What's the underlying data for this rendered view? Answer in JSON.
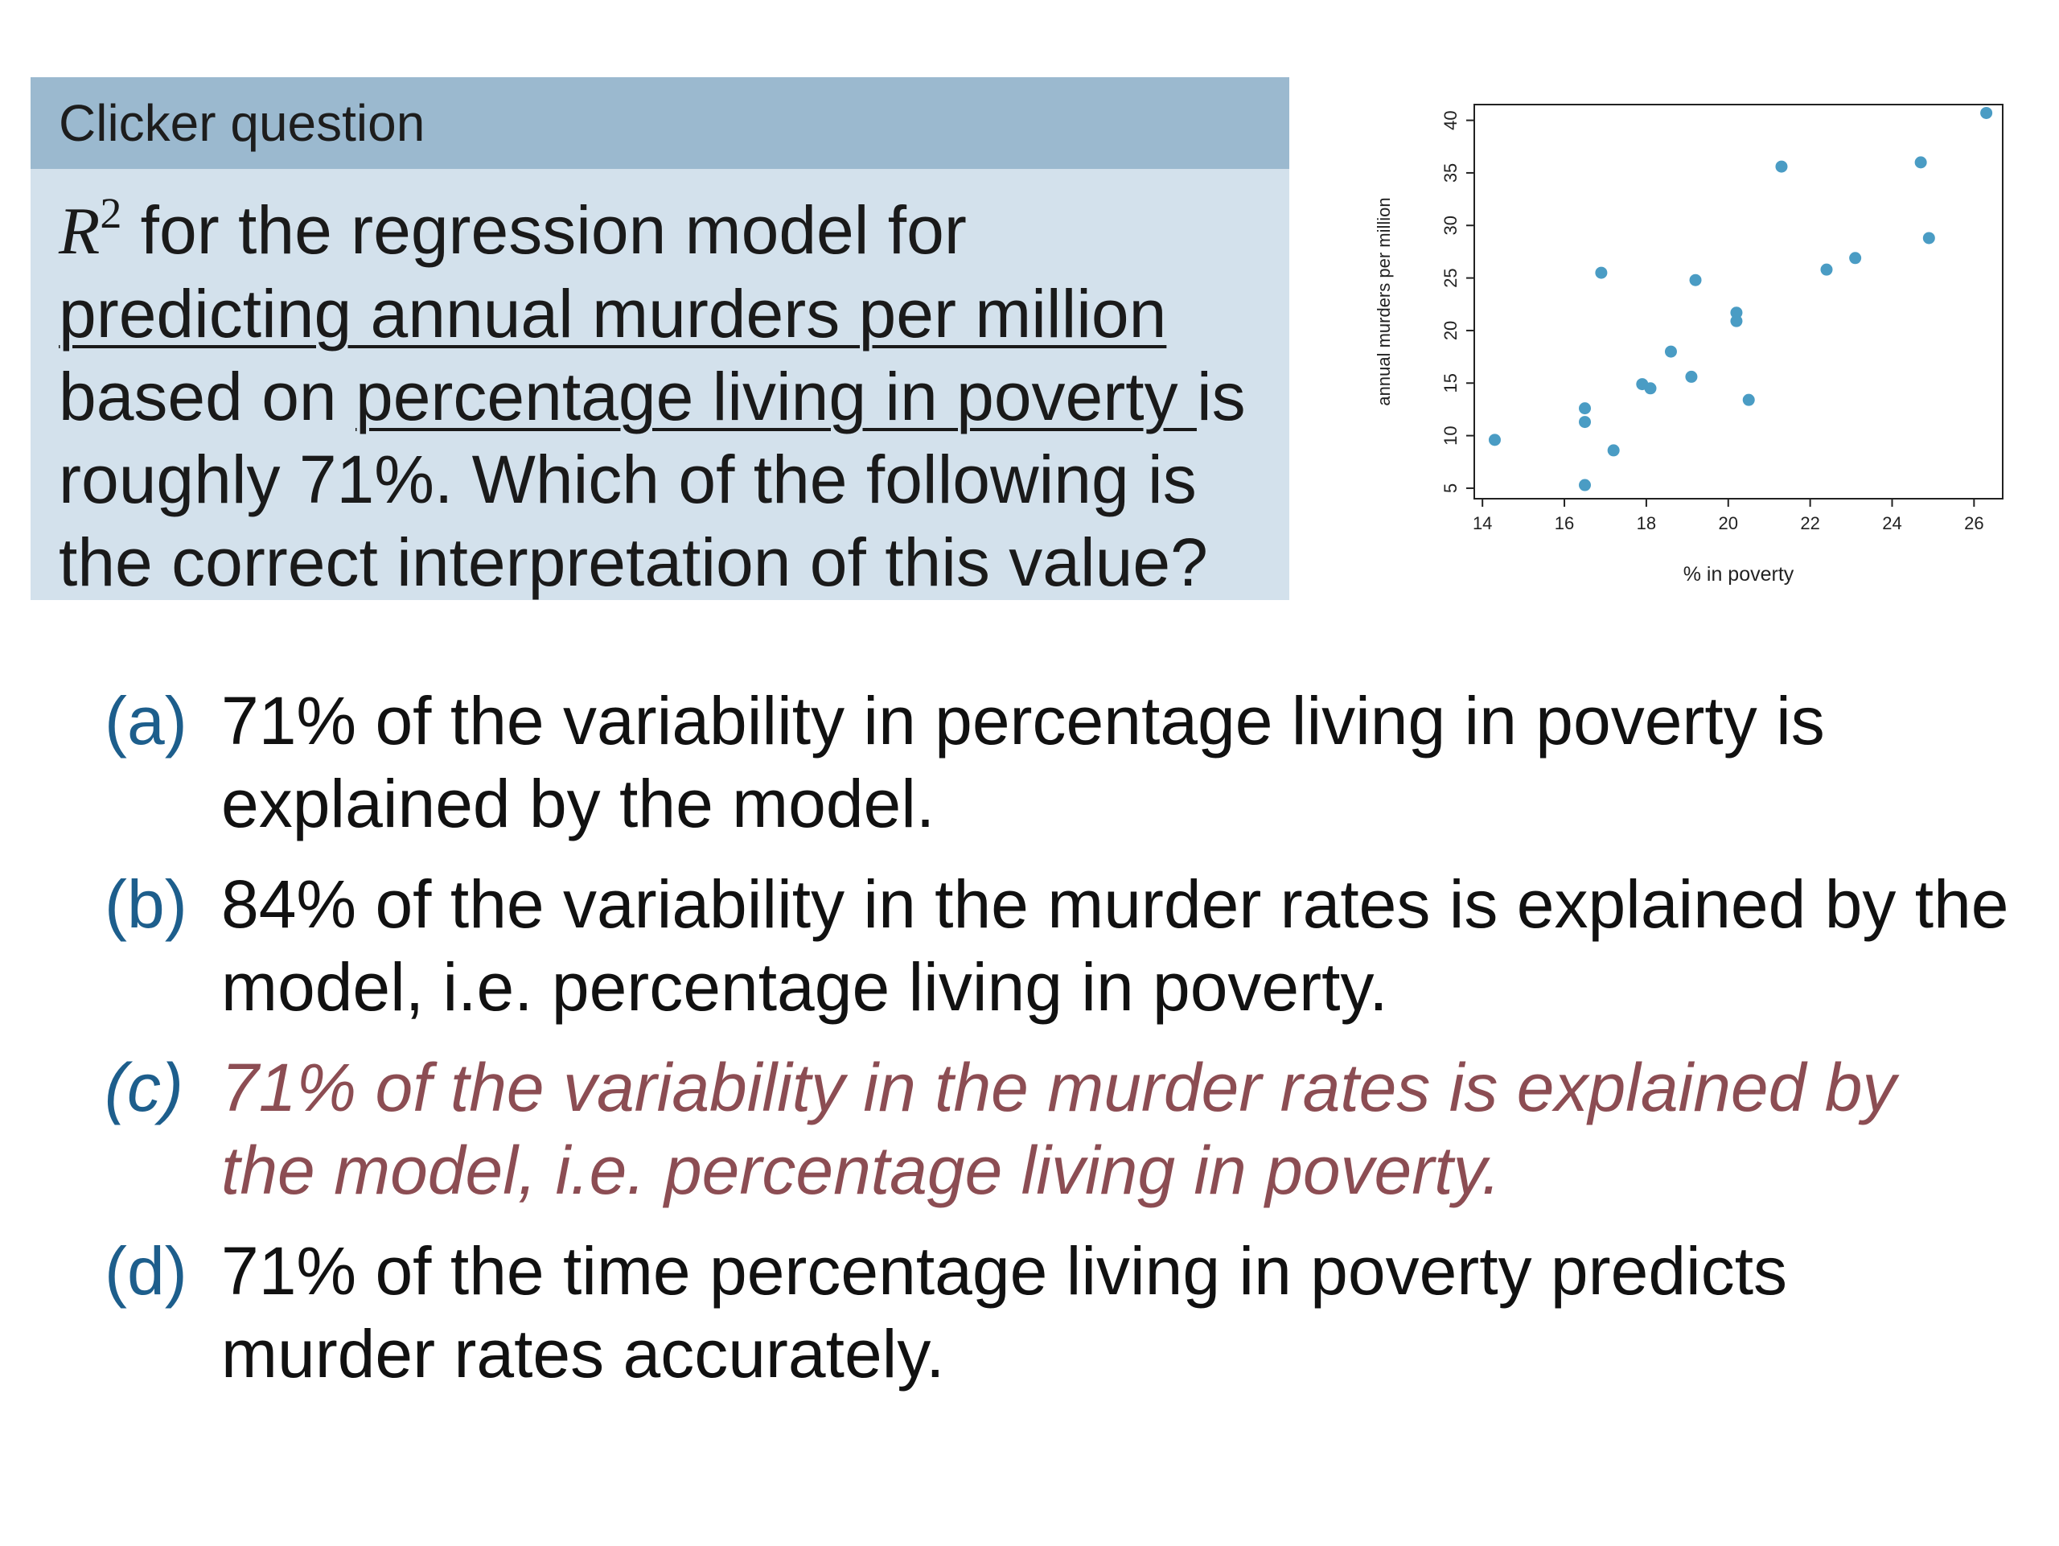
{
  "question": {
    "header": "Clicker question",
    "r_symbol": "R",
    "r_exponent": "2",
    "text_part1": " for the regression model for",
    "underline1": "predicting annual murders per million",
    "text_part2": "based on ",
    "underline2": "percentage living in poverty ",
    "text_part3": "is",
    "text_part4": "roughly 71%. Which of the following is",
    "text_part5": "the correct interpretation of this value?"
  },
  "options": [
    {
      "letter": "(a)",
      "line1": "71% of the variability in percentage living in poverty is",
      "line2": "explained by the model.",
      "correct": false
    },
    {
      "letter": "(b)",
      "line1": "84% of the variability in the murder rates is explained by the",
      "line2": "model, i.e. percentage living in poverty.",
      "correct": false
    },
    {
      "letter": "(c)",
      "line1": "71% of the variability in the murder rates is explained by",
      "line2": "the model, i.e. percentage living in poverty.",
      "correct": true
    },
    {
      "letter": "(d)",
      "line1": "71% of the time percentage living in poverty predicts",
      "line2": "murder rates accurately.",
      "correct": false
    }
  ],
  "colors": {
    "header_bg": "#9bb9cf",
    "box_bg": "#d3e1ec",
    "letter": "#1d5e8c",
    "correct_text": "#8c4d53",
    "points": "#4a9cc4"
  },
  "chart_data": {
    "type": "scatter",
    "xlabel": "% in poverty",
    "ylabel": "annual murders per million",
    "xlim": [
      13.8,
      26.7
    ],
    "ylim": [
      4,
      41.5
    ],
    "xticks": [
      14,
      16,
      18,
      20,
      22,
      24,
      26
    ],
    "yticks": [
      5,
      10,
      15,
      20,
      25,
      30,
      35,
      40
    ],
    "grid": false,
    "points": [
      {
        "x": 14.3,
        "y": 9.6
      },
      {
        "x": 16.5,
        "y": 5.3
      },
      {
        "x": 16.5,
        "y": 11.3
      },
      {
        "x": 16.5,
        "y": 12.6
      },
      {
        "x": 16.9,
        "y": 25.5
      },
      {
        "x": 17.2,
        "y": 8.6
      },
      {
        "x": 17.9,
        "y": 14.9
      },
      {
        "x": 18.1,
        "y": 14.5
      },
      {
        "x": 18.6,
        "y": 18.0
      },
      {
        "x": 19.1,
        "y": 15.6
      },
      {
        "x": 19.2,
        "y": 24.8
      },
      {
        "x": 20.2,
        "y": 21.7
      },
      {
        "x": 20.2,
        "y": 20.9
      },
      {
        "x": 20.5,
        "y": 13.4
      },
      {
        "x": 21.3,
        "y": 35.6
      },
      {
        "x": 22.4,
        "y": 25.8
      },
      {
        "x": 23.1,
        "y": 26.9
      },
      {
        "x": 24.7,
        "y": 36.0
      },
      {
        "x": 24.9,
        "y": 28.8
      },
      {
        "x": 26.3,
        "y": 40.7
      }
    ]
  }
}
